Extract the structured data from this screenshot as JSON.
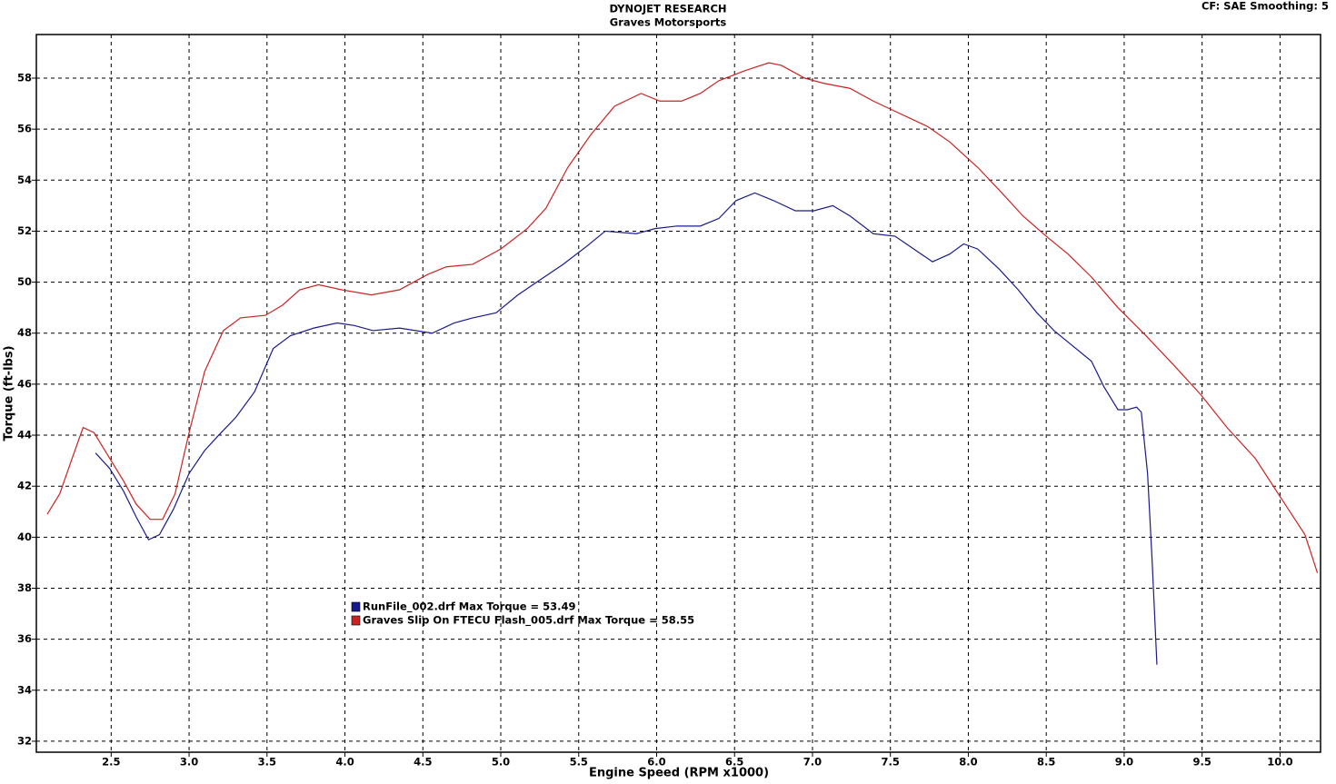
{
  "chart_data": {
    "type": "line",
    "title": "DYNOJET RESEARCH",
    "subtitle": "Graves Motorsports",
    "annotation": "CF: SAE  Smoothing: 5",
    "x_label": "Engine Speed (RPM x1000)",
    "y_label": "Torque (ft-lbs)",
    "xlim": [
      2.02,
      10.26
    ],
    "ylim": [
      31.57,
      59.71
    ],
    "xticks": [
      2.5,
      {
        "value": 3,
        "label": "3.0"
      },
      3.5,
      {
        "value": 4,
        "label": "4.0"
      },
      4.5,
      {
        "value": 5,
        "label": "5.0"
      },
      5.5,
      {
        "value": 6,
        "label": "6.0"
      },
      6.5,
      {
        "value": 7,
        "label": "7.0"
      },
      7.5,
      {
        "value": 8,
        "label": "8.0"
      },
      8.5,
      {
        "value": 9,
        "label": "9.0"
      },
      9.5,
      {
        "value": 10,
        "label": "10.0"
      }
    ],
    "yticks": [
      32,
      34,
      36,
      38,
      40,
      42,
      44,
      46,
      48,
      50,
      52,
      54,
      56,
      58
    ],
    "grid": true,
    "series": [
      {
        "name": "RunFile_002.drf Max Torque = 53.49",
        "color": "#1a1a8c",
        "x": [
          2.4,
          2.49,
          2.58,
          2.66,
          2.74,
          2.81,
          2.9,
          3.0,
          3.1,
          3.19,
          3.3,
          3.42,
          3.54,
          3.65,
          3.8,
          3.95,
          4.06,
          4.18,
          4.35,
          4.56,
          4.7,
          4.82,
          4.97,
          5.11,
          5.23,
          5.4,
          5.55,
          5.67,
          5.87,
          5.99,
          6.13,
          6.28,
          6.4,
          6.51,
          6.63,
          6.75,
          6.89,
          7.01,
          7.13,
          7.24,
          7.39,
          7.53,
          7.65,
          7.77,
          7.88,
          7.97,
          8.06,
          8.2,
          8.32,
          8.44,
          8.55,
          8.67,
          8.79,
          8.87,
          8.96,
          9.02,
          9.08,
          9.11,
          9.15,
          9.18,
          9.21
        ],
        "values": [
          43.3,
          42.7,
          41.8,
          40.8,
          39.9,
          40.1,
          41.1,
          42.5,
          43.4,
          44.0,
          44.7,
          45.7,
          47.4,
          47.9,
          48.2,
          48.4,
          48.3,
          48.1,
          48.2,
          48.0,
          48.4,
          48.6,
          48.8,
          49.5,
          50.0,
          50.7,
          51.4,
          52.0,
          51.9,
          52.1,
          52.2,
          52.2,
          52.5,
          53.2,
          53.5,
          53.2,
          52.8,
          52.8,
          53.0,
          52.6,
          51.9,
          51.8,
          51.3,
          50.8,
          51.1,
          51.5,
          51.3,
          50.5,
          49.7,
          48.8,
          48.1,
          47.5,
          46.9,
          45.9,
          45.0,
          45.0,
          45.1,
          44.9,
          42.5,
          39.0,
          35.0
        ]
      },
      {
        "name": "Graves Slip On FTECU Flash_005.drf Max Torque = 58.55",
        "color": "#cc2222",
        "x": [
          2.09,
          2.17,
          2.25,
          2.32,
          2.39,
          2.46,
          2.58,
          2.66,
          2.75,
          2.83,
          2.91,
          3.0,
          3.1,
          3.22,
          3.33,
          3.49,
          3.6,
          3.71,
          3.83,
          3.98,
          4.17,
          4.35,
          4.53,
          4.65,
          4.82,
          5.0,
          5.17,
          5.29,
          5.43,
          5.58,
          5.73,
          5.9,
          6.02,
          6.16,
          6.28,
          6.4,
          6.57,
          6.72,
          6.8,
          6.95,
          7.07,
          7.24,
          7.39,
          7.53,
          7.74,
          7.88,
          8.06,
          8.2,
          8.35,
          8.5,
          8.64,
          8.79,
          8.96,
          9.14,
          9.31,
          9.49,
          9.66,
          9.84,
          10.01,
          10.16,
          10.24
        ],
        "values": [
          40.9,
          41.7,
          43.1,
          44.3,
          44.1,
          43.4,
          42.2,
          41.3,
          40.7,
          40.7,
          41.7,
          44.1,
          46.5,
          48.1,
          48.6,
          48.7,
          49.1,
          49.7,
          49.9,
          49.7,
          49.5,
          49.7,
          50.3,
          50.6,
          50.7,
          51.3,
          52.1,
          52.9,
          54.5,
          55.8,
          56.9,
          57.4,
          57.1,
          57.1,
          57.4,
          57.9,
          58.3,
          58.6,
          58.5,
          58.0,
          57.8,
          57.6,
          57.1,
          56.7,
          56.1,
          55.5,
          54.5,
          53.6,
          52.6,
          51.8,
          51.1,
          50.2,
          49.0,
          47.9,
          46.8,
          45.6,
          44.3,
          43.1,
          41.5,
          40.1,
          38.6
        ]
      }
    ]
  }
}
